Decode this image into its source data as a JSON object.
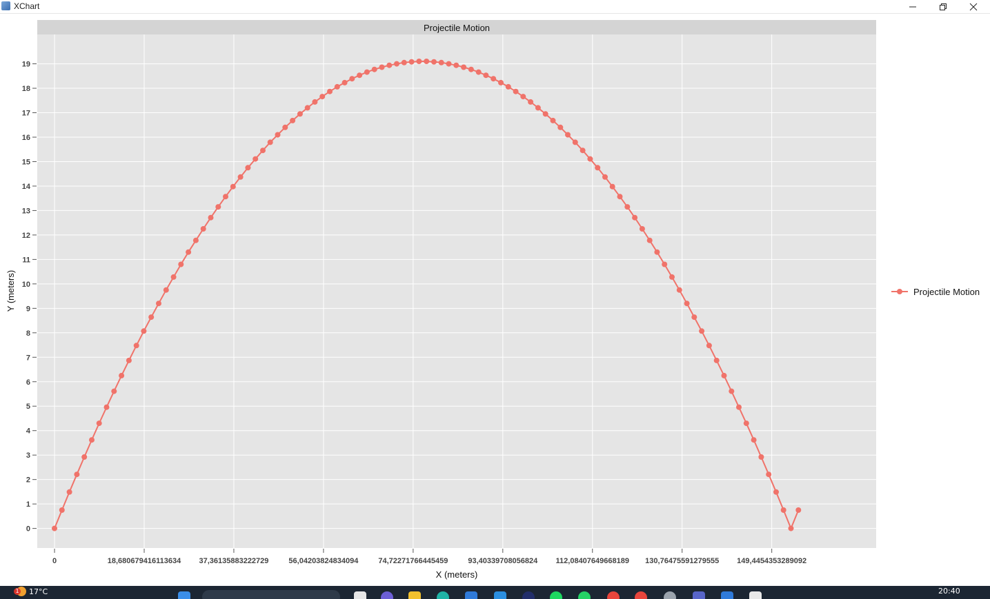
{
  "window": {
    "title": "XChart"
  },
  "chart_data": {
    "type": "line",
    "title": "Projectile Motion",
    "xlabel": "X (meters)",
    "ylabel": "Y (meters)",
    "xlim": [
      -3.6,
      171.2
    ],
    "ylim": [
      -0.8,
      20.2
    ],
    "grid": true,
    "legend_position": "right",
    "x_ticks": [
      0,
      18.6806794161136,
      37.3613588322273,
      56.0420382483409,
      74.7227176644546,
      93.4033970805682,
      112.084076496682,
      130.764755912796,
      149.445435328909
    ],
    "x_tick_labels": [
      "0",
      "18,6806794161136​34",
      "37,36135883222729",
      "56,04203824834094",
      "74,72271766445459",
      "93,40339708056824",
      "112,08407649668189",
      "130,76475591279555",
      "149,4454353289092"
    ],
    "y_ticks": [
      0,
      1,
      2,
      3,
      4,
      5,
      6,
      7,
      8,
      9,
      10,
      11,
      12,
      13,
      14,
      15,
      16,
      17,
      18,
      19
    ],
    "y_tick_labels": [
      "0",
      "1",
      "2",
      "3",
      "4",
      "5",
      "6",
      "7",
      "8",
      "9",
      "10",
      "11",
      "12",
      "13",
      "14",
      "15",
      "16",
      "17",
      "18",
      "19"
    ],
    "series": [
      {
        "name": "Projectile Motion",
        "color": "#f0736a",
        "marker": "circle",
        "x": [
          0,
          1.55,
          3.1,
          4.65,
          6.2,
          7.75,
          9.3,
          10.85,
          12.4,
          13.95,
          15.5,
          17.05,
          18.6,
          20.15,
          21.7,
          23.25,
          24.8,
          26.35,
          27.9,
          29.45,
          31.0,
          32.55,
          34.1,
          35.65,
          37.2,
          38.75,
          40.3,
          41.85,
          43.4,
          44.95,
          46.5,
          48.05,
          49.6,
          51.15,
          52.7,
          54.25,
          55.8,
          57.35,
          58.9,
          60.45,
          62.0,
          63.55,
          65.1,
          66.65,
          68.2,
          69.75,
          71.3,
          72.85,
          74.4,
          75.95,
          77.5,
          79.05,
          80.6,
          82.15,
          83.7,
          85.25,
          86.8,
          88.35,
          89.9,
          91.45,
          93.0,
          94.55,
          96.1,
          97.65,
          99.2,
          100.75,
          102.3,
          103.85,
          105.4,
          106.95,
          108.5,
          110.05,
          111.6,
          113.15,
          114.7,
          116.25,
          117.8,
          119.35,
          120.9,
          122.45,
          124.0,
          125.55,
          127.1,
          128.65,
          130.2,
          131.75,
          133.3,
          134.85,
          136.4,
          137.95,
          139.5,
          141.05,
          142.6,
          144.15,
          145.7,
          147.25,
          148.8,
          150.35,
          151.9,
          153.45,
          155.0
        ],
        "y": [
          0.0,
          0.75,
          1.49,
          2.21,
          2.92,
          3.62,
          4.3,
          4.96,
          5.61,
          6.25,
          6.87,
          7.48,
          8.07,
          8.64,
          9.2,
          9.75,
          10.28,
          10.8,
          11.3,
          11.78,
          12.25,
          12.71,
          13.15,
          13.57,
          13.98,
          14.37,
          14.75,
          15.11,
          15.46,
          15.79,
          16.1,
          16.4,
          16.68,
          16.95,
          17.2,
          17.44,
          17.66,
          17.87,
          18.06,
          18.23,
          18.39,
          18.53,
          18.66,
          18.77,
          18.86,
          18.94,
          19.0,
          19.05,
          19.08,
          19.1,
          19.1,
          19.08,
          19.05,
          19.0,
          18.94,
          18.86,
          18.77,
          18.66,
          18.53,
          18.39,
          18.23,
          18.06,
          17.87,
          17.66,
          17.44,
          17.2,
          16.95,
          16.68,
          16.4,
          16.1,
          15.79,
          15.46,
          15.11,
          14.75,
          14.37,
          13.98,
          13.57,
          13.15,
          12.71,
          12.25,
          11.78,
          11.3,
          10.8,
          10.28,
          9.75,
          9.2,
          8.64,
          8.07,
          7.48,
          6.87,
          6.25,
          5.61,
          4.96,
          4.3,
          3.62,
          2.92,
          2.21,
          1.49,
          0.75,
          0.0,
          0.75
        ]
      }
    ]
  },
  "taskbar": {
    "weather_temp": "17°C",
    "weather_badge": "1",
    "clock_time": "20:40"
  }
}
